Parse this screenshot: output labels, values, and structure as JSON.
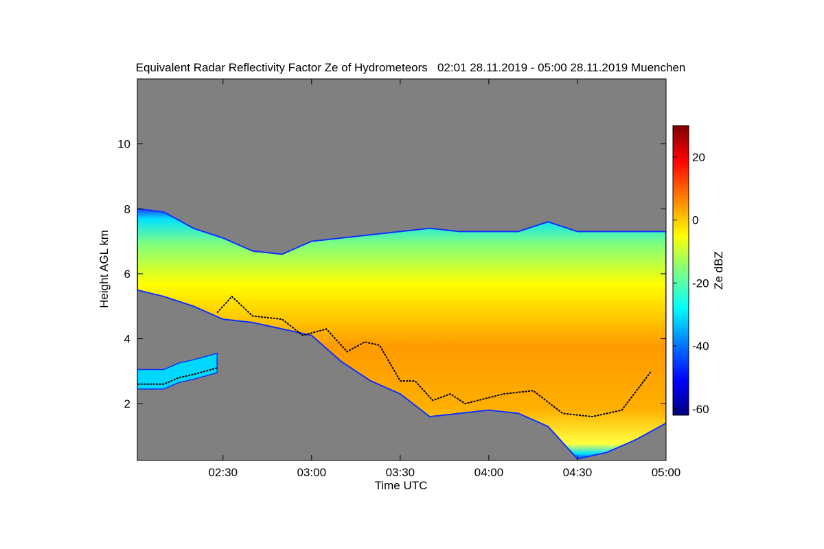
{
  "chart_data": {
    "type": "heatmap",
    "title": "Equivalent Radar Reflectivity Factor Ze of Hydrometeors   02:01 28.11.2019 - 05:00 28.11.2019 Muenchen",
    "xlabel": "Time UTC",
    "ylabel": "Height AGL km",
    "x_range": [
      "02:01",
      "05:00"
    ],
    "ylim": [
      0.25,
      12.0
    ],
    "x_ticks": [
      "02:30",
      "03:00",
      "03:30",
      "04:00",
      "04:30",
      "05:00"
    ],
    "y_ticks": [
      2,
      4,
      6,
      8,
      10
    ],
    "colorbar": {
      "label": "Ze dBZ",
      "range": [
        -62,
        30
      ],
      "ticks": [
        -60,
        -40,
        -20,
        0,
        20
      ],
      "colormap": [
        "#00007f",
        "#0000ff",
        "#007fff",
        "#00ffff",
        "#7fff7f",
        "#ffff00",
        "#ff7f00",
        "#ff0000",
        "#7f0000"
      ]
    },
    "background_color": "#808080",
    "echo_top_km": [
      {
        "time": "02:01",
        "value": 8.0
      },
      {
        "time": "02:10",
        "value": 7.9
      },
      {
        "time": "02:20",
        "value": 7.4
      },
      {
        "time": "02:30",
        "value": 7.1
      },
      {
        "time": "02:40",
        "value": 6.7
      },
      {
        "time": "02:50",
        "value": 6.6
      },
      {
        "time": "03:00",
        "value": 7.0
      },
      {
        "time": "03:10",
        "value": 7.1
      },
      {
        "time": "03:20",
        "value": 7.2
      },
      {
        "time": "03:30",
        "value": 7.3
      },
      {
        "time": "03:40",
        "value": 7.4
      },
      {
        "time": "03:50",
        "value": 7.3
      },
      {
        "time": "04:00",
        "value": 7.3
      },
      {
        "time": "04:10",
        "value": 7.3
      },
      {
        "time": "04:20",
        "value": 7.6
      },
      {
        "time": "04:30",
        "value": 7.3
      },
      {
        "time": "04:40",
        "value": 7.3
      },
      {
        "time": "04:50",
        "value": 7.3
      },
      {
        "time": "05:00",
        "value": 7.3
      }
    ],
    "echo_base_km": [
      {
        "time": "02:01",
        "value": 5.5
      },
      {
        "time": "02:10",
        "value": 5.3
      },
      {
        "time": "02:20",
        "value": 5.0
      },
      {
        "time": "02:30",
        "value": 4.6
      },
      {
        "time": "02:40",
        "value": 4.5
      },
      {
        "time": "02:50",
        "value": 4.3
      },
      {
        "time": "03:00",
        "value": 4.1
      },
      {
        "time": "03:10",
        "value": 3.3
      },
      {
        "time": "03:20",
        "value": 2.7
      },
      {
        "time": "03:30",
        "value": 2.3
      },
      {
        "time": "03:40",
        "value": 1.6
      },
      {
        "time": "03:50",
        "value": 1.7
      },
      {
        "time": "04:00",
        "value": 1.8
      },
      {
        "time": "04:10",
        "value": 1.7
      },
      {
        "time": "04:20",
        "value": 1.3
      },
      {
        "time": "04:30",
        "value": 0.3
      },
      {
        "time": "04:40",
        "value": 0.5
      },
      {
        "time": "04:50",
        "value": 0.9
      },
      {
        "time": "05:00",
        "value": 1.4
      }
    ],
    "cloud_base_km": [
      {
        "time": "02:28",
        "value": 4.8
      },
      {
        "time": "02:33",
        "value": 5.3
      },
      {
        "time": "02:40",
        "value": 4.7
      },
      {
        "time": "02:50",
        "value": 4.6
      },
      {
        "time": "02:57",
        "value": 4.1
      },
      {
        "time": "03:05",
        "value": 4.3
      },
      {
        "time": "03:12",
        "value": 3.6
      },
      {
        "time": "03:18",
        "value": 3.9
      },
      {
        "time": "03:23",
        "value": 3.8
      },
      {
        "time": "03:30",
        "value": 2.7
      },
      {
        "time": "03:35",
        "value": 2.7
      },
      {
        "time": "03:41",
        "value": 2.1
      },
      {
        "time": "03:47",
        "value": 2.3
      },
      {
        "time": "03:52",
        "value": 2.0
      },
      {
        "time": "04:05",
        "value": 2.3
      },
      {
        "time": "04:15",
        "value": 2.4
      },
      {
        "time": "04:25",
        "value": 1.7
      },
      {
        "time": "04:35",
        "value": 1.6
      },
      {
        "time": "04:45",
        "value": 1.8
      },
      {
        "time": "04:55",
        "value": 3.0
      }
    ],
    "low_layer_cloud_base_km": [
      {
        "time": "02:01",
        "value": 2.6
      },
      {
        "time": "02:10",
        "value": 2.6
      },
      {
        "time": "02:15",
        "value": 2.8
      },
      {
        "time": "02:20",
        "value": 2.9
      },
      {
        "time": "02:28",
        "value": 3.1
      }
    ]
  }
}
